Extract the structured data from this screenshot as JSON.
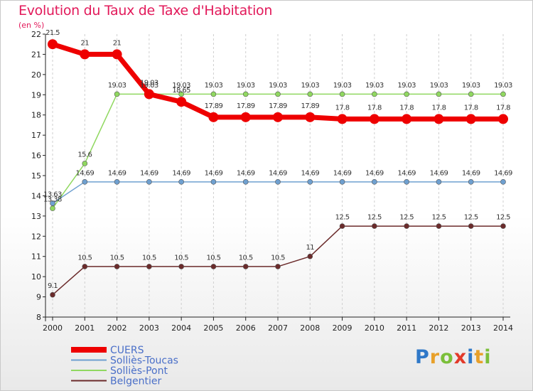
{
  "title": "Evolution du Taux de Taxe d'Habitation",
  "subtitle": "(en %)",
  "logo": {
    "text": "Proxiti",
    "letters": [
      {
        "ch": "P",
        "color": "#2f78c8"
      },
      {
        "ch": "r",
        "color": "#e8a02a"
      },
      {
        "ch": "o",
        "color": "#7bbf3a"
      },
      {
        "ch": "x",
        "color": "#e23a2a"
      },
      {
        "ch": "i",
        "color": "#2f78c8"
      },
      {
        "ch": "t",
        "color": "#e8a02a"
      },
      {
        "ch": "i",
        "color": "#7bbf3a"
      }
    ]
  },
  "chart_data": {
    "type": "line",
    "title": "Evolution du Taux de Taxe d'Habitation",
    "ylabel": "(en %)",
    "xlabel": "",
    "x": [
      "2000",
      "2001",
      "2002",
      "2003",
      "2004",
      "2005",
      "2006",
      "2007",
      "2008",
      "2009",
      "2010",
      "2011",
      "2012",
      "2013",
      "2014"
    ],
    "ylim": [
      8,
      22
    ],
    "yticks": [
      8,
      9,
      10,
      11,
      12,
      13,
      14,
      15,
      16,
      17,
      18,
      19,
      20,
      21,
      22
    ],
    "grid": "vertical dashed",
    "series": [
      {
        "name": "Belgentier",
        "color": "#6b2b2b",
        "line_width": 1.5,
        "marker_r": 3.5,
        "values": [
          9.1,
          10.5,
          10.5,
          10.5,
          10.5,
          10.5,
          10.5,
          10.5,
          11,
          12.5,
          12.5,
          12.5,
          12.5,
          12.5,
          12.5
        ],
        "labels": [
          "9.1",
          "10.5",
          "10.5",
          "10.5",
          "10.5",
          "10.5",
          "10.5",
          "10.5",
          "11",
          "12.5",
          "12.5",
          "12.5",
          "12.5",
          "12.5",
          "12.5"
        ]
      },
      {
        "name": "Solliès-Pont",
        "color": "#90d860",
        "line_width": 1.5,
        "marker_r": 3.5,
        "values": [
          13.38,
          15.6,
          19.03,
          19.03,
          19.03,
          19.03,
          19.03,
          19.03,
          19.03,
          19.03,
          19.03,
          19.03,
          19.03,
          19.03,
          19.03
        ],
        "labels": [
          "13.38",
          "15.6",
          "19.03",
          "19.03",
          "19.03",
          "19.03",
          "19.03",
          "19.03",
          "19.03",
          "19.03",
          "19.03",
          "19.03",
          "19.03",
          "19.03",
          "19.03"
        ]
      },
      {
        "name": "Solliès-Toucas",
        "color": "#6fa0d0",
        "line_width": 1.5,
        "marker_r": 3.5,
        "values": [
          13.63,
          14.69,
          14.69,
          14.69,
          14.69,
          14.69,
          14.69,
          14.69,
          14.69,
          14.69,
          14.69,
          14.69,
          14.69,
          14.69,
          14.69
        ],
        "labels": [
          "13.63",
          "14.69",
          "14.69",
          "14.69",
          "14.69",
          "14.69",
          "14.69",
          "14.69",
          "14.69",
          "14.69",
          "14.69",
          "14.69",
          "14.69",
          "14.69",
          "14.69"
        ]
      },
      {
        "name": "CUERS",
        "color": "#ee0000",
        "line_width": 7,
        "marker_r": 7,
        "values": [
          21.5,
          21,
          21,
          19.03,
          18.65,
          17.89,
          17.89,
          17.89,
          17.89,
          17.8,
          17.8,
          17.8,
          17.8,
          17.8,
          17.8
        ],
        "labels": [
          "21.5",
          "21",
          "21",
          "19.03",
          "18.65",
          "17.89",
          "17.89",
          "17.89",
          "17.89",
          "17.8",
          "17.8",
          "17.8",
          "17.8",
          "17.8",
          "17.8"
        ]
      }
    ],
    "legend": [
      "CUERS",
      "Solliès-Toucas",
      "Solliès-Pont",
      "Belgentier"
    ],
    "legend_position": "bottom-left"
  }
}
